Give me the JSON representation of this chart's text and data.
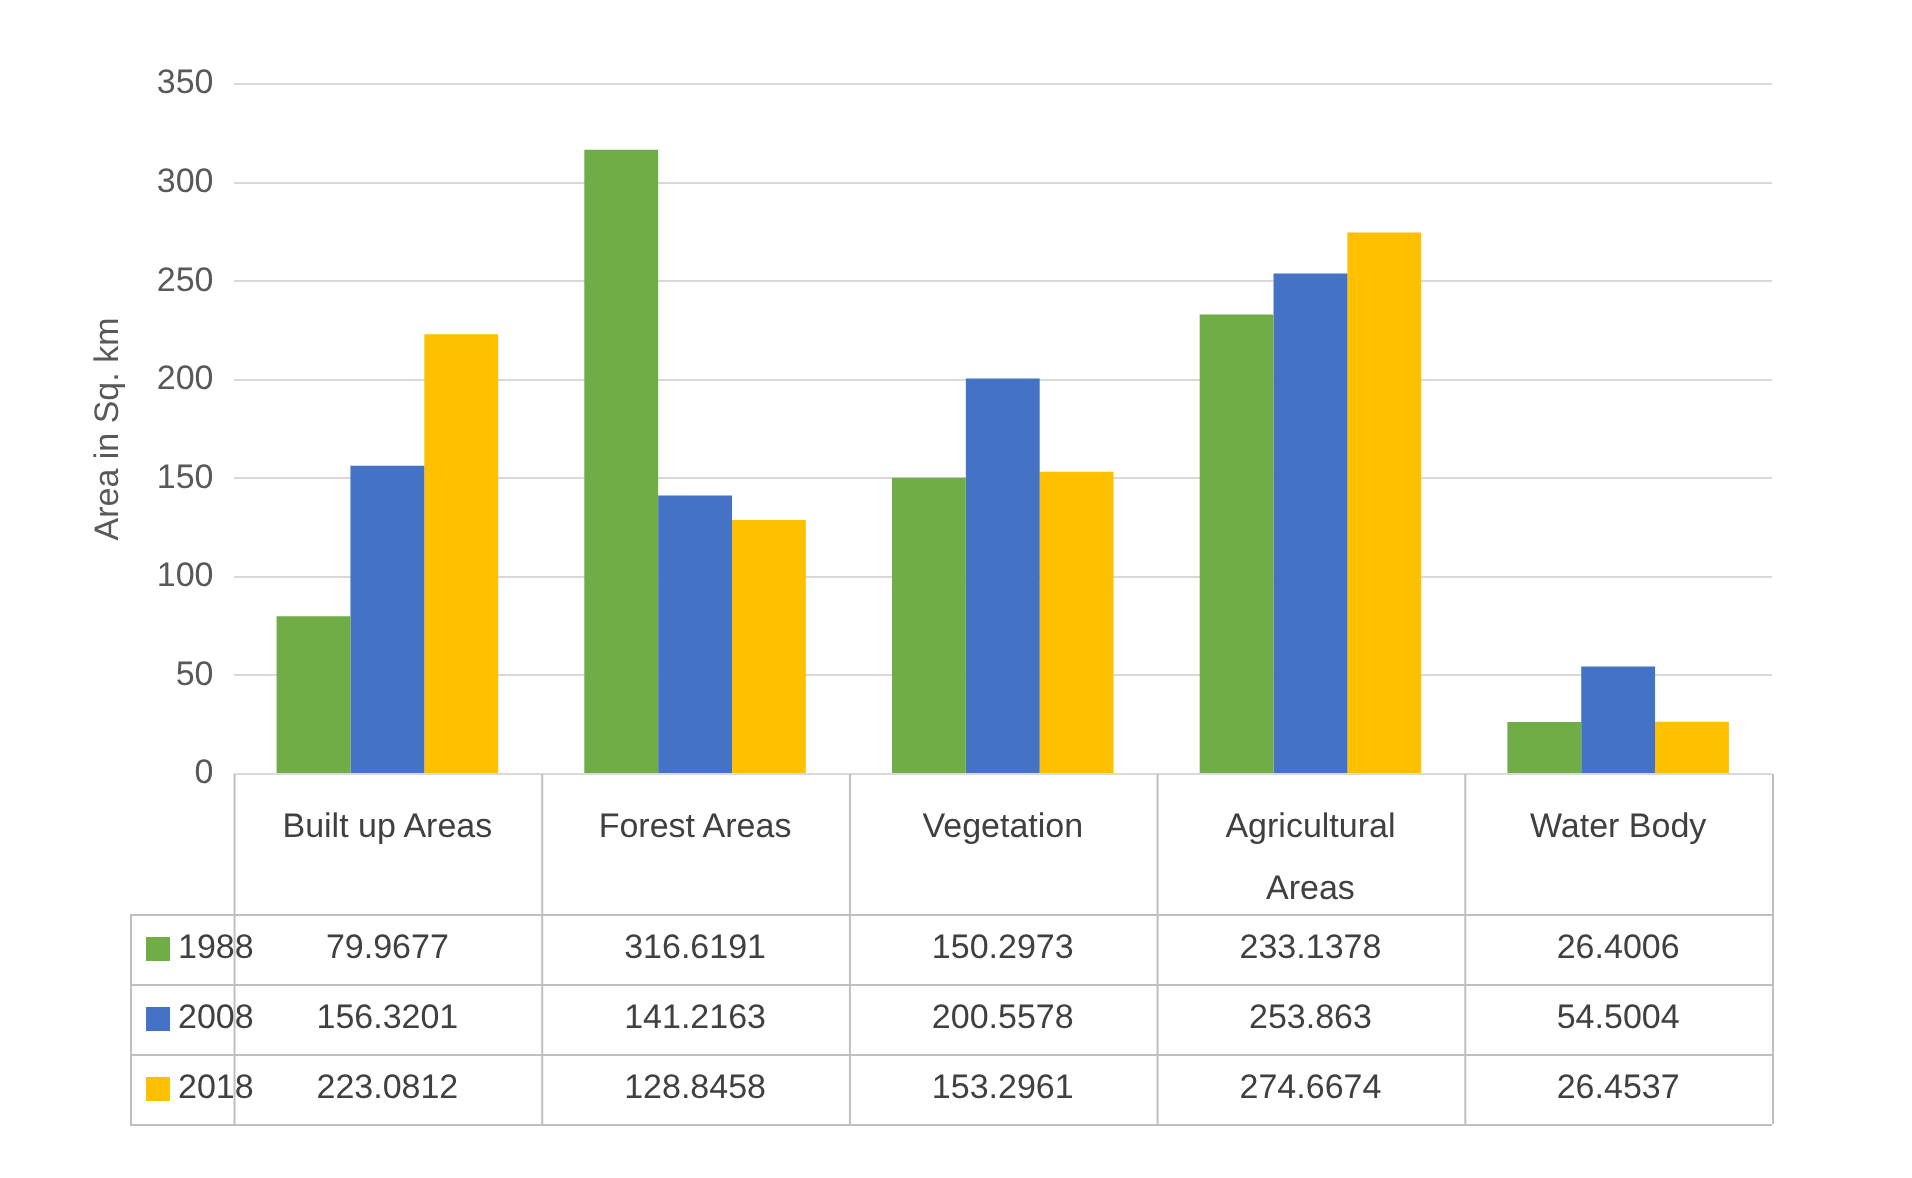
{
  "chart_data": {
    "type": "bar",
    "ylabel": "Area in Sq. km",
    "categories": [
      "Built up Areas",
      "Forest Areas",
      "Vegetation",
      "Agricultural Areas",
      "Water Body"
    ],
    "series": [
      {
        "name": "1988",
        "color": "#70ad47",
        "values": [
          79.9677,
          316.6191,
          150.2973,
          233.1378,
          26.4006
        ]
      },
      {
        "name": "2008",
        "color": "#4472c4",
        "values": [
          156.3201,
          141.2163,
          200.5578,
          253.863,
          54.5004
        ]
      },
      {
        "name": "2018",
        "color": "#ffc000",
        "values": [
          223.0812,
          128.8458,
          153.2961,
          274.6674,
          26.4537
        ]
      }
    ],
    "ylim": [
      0,
      350
    ],
    "yticks": [
      0,
      50,
      100,
      150,
      200,
      250,
      300,
      350
    ],
    "grid": "y",
    "data_labels": true,
    "legend": "bottom"
  }
}
